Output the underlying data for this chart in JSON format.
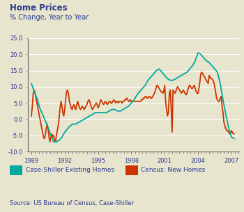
{
  "title": "Home Prices",
  "subtitle": "% Change, Year to Year",
  "source": "Source: US Bureau of Census, Case-Shiller",
  "background_color": "#e8e5ce",
  "plot_bg_color": "#e8e5ce",
  "title_color": "#2b3990",
  "text_color": "#2b3990",
  "grid_color": "#ffffff",
  "ylim": [
    -10.0,
    25.0
  ],
  "yticks": [
    -10.0,
    -5.0,
    0.0,
    5.0,
    10.0,
    15.0,
    20.0,
    25.0
  ],
  "xtick_years": [
    1989,
    1992,
    1995,
    1998,
    2001,
    2004,
    2007
  ],
  "xlim": [
    1988.7,
    2007.7
  ],
  "cs_color": "#00a89d",
  "census_color": "#cc3300",
  "cs_label": "Case-Shiller Existing Homes",
  "census_label": "Census: New Homes",
  "cs_x": [
    1989.0,
    1989.25,
    1989.5,
    1989.75,
    1990.0,
    1990.25,
    1990.5,
    1990.75,
    1991.0,
    1991.25,
    1991.5,
    1991.75,
    1992.0,
    1992.25,
    1992.5,
    1992.75,
    1993.0,
    1993.25,
    1993.5,
    1993.75,
    1994.0,
    1994.25,
    1994.5,
    1994.75,
    1995.0,
    1995.25,
    1995.5,
    1995.75,
    1996.0,
    1996.25,
    1996.5,
    1996.75,
    1997.0,
    1997.25,
    1997.5,
    1997.75,
    1998.0,
    1998.25,
    1998.5,
    1998.75,
    1999.0,
    1999.25,
    1999.5,
    1999.75,
    2000.0,
    2000.25,
    2000.5,
    2000.75,
    2001.0,
    2001.25,
    2001.5,
    2001.75,
    2002.0,
    2002.25,
    2002.5,
    2002.75,
    2003.0,
    2003.25,
    2003.5,
    2003.75,
    2004.0,
    2004.25,
    2004.5,
    2004.75,
    2005.0,
    2005.25,
    2005.5,
    2005.75,
    2006.0,
    2006.25,
    2006.5,
    2006.75,
    2007.0,
    2007.25
  ],
  "cs_y": [
    11.0,
    8.5,
    6.5,
    3.5,
    1.5,
    -0.5,
    -2.5,
    -5.0,
    -7.0,
    -7.0,
    -6.5,
    -5.5,
    -4.0,
    -3.0,
    -2.0,
    -1.5,
    -1.5,
    -1.0,
    -0.5,
    0.0,
    0.5,
    1.0,
    1.5,
    2.0,
    2.0,
    2.0,
    2.0,
    2.0,
    2.5,
    3.0,
    3.0,
    2.5,
    2.5,
    3.0,
    3.5,
    4.0,
    5.0,
    6.0,
    7.5,
    8.5,
    9.5,
    10.5,
    12.0,
    13.0,
    14.0,
    15.0,
    15.5,
    14.5,
    13.5,
    12.5,
    12.0,
    12.0,
    12.5,
    13.0,
    13.5,
    14.0,
    14.5,
    15.5,
    16.5,
    18.0,
    20.5,
    20.0,
    19.0,
    18.0,
    17.5,
    16.5,
    15.5,
    14.5,
    11.0,
    6.0,
    1.5,
    -2.5,
    -5.5,
    -6.0
  ],
  "census_x": [
    1989.0,
    1989.083,
    1989.167,
    1989.25,
    1989.333,
    1989.417,
    1989.5,
    1989.583,
    1989.667,
    1989.75,
    1989.833,
    1989.917,
    1990.0,
    1990.083,
    1990.167,
    1990.25,
    1990.333,
    1990.417,
    1990.5,
    1990.583,
    1990.667,
    1990.75,
    1990.833,
    1990.917,
    1991.0,
    1991.083,
    1991.167,
    1991.25,
    1991.333,
    1991.417,
    1991.5,
    1991.583,
    1991.667,
    1991.75,
    1991.833,
    1991.917,
    1992.0,
    1992.083,
    1992.167,
    1992.25,
    1992.333,
    1992.417,
    1992.5,
    1992.583,
    1992.667,
    1992.75,
    1992.833,
    1992.917,
    1993.0,
    1993.083,
    1993.167,
    1993.25,
    1993.333,
    1993.417,
    1993.5,
    1993.583,
    1993.667,
    1993.75,
    1993.833,
    1993.917,
    1994.0,
    1994.083,
    1994.167,
    1994.25,
    1994.333,
    1994.417,
    1994.5,
    1994.583,
    1994.667,
    1994.75,
    1994.833,
    1994.917,
    1995.0,
    1995.083,
    1995.167,
    1995.25,
    1995.333,
    1995.417,
    1995.5,
    1995.583,
    1995.667,
    1995.75,
    1995.833,
    1995.917,
    1996.0,
    1996.083,
    1996.167,
    1996.25,
    1996.333,
    1996.417,
    1996.5,
    1996.583,
    1996.667,
    1996.75,
    1996.833,
    1996.917,
    1997.0,
    1997.083,
    1997.167,
    1997.25,
    1997.333,
    1997.417,
    1997.5,
    1997.583,
    1997.667,
    1997.75,
    1997.833,
    1997.917,
    1998.0,
    1998.083,
    1998.167,
    1998.25,
    1998.333,
    1998.417,
    1998.5,
    1998.583,
    1998.667,
    1998.75,
    1998.833,
    1998.917,
    1999.0,
    1999.083,
    1999.167,
    1999.25,
    1999.333,
    1999.417,
    1999.5,
    1999.583,
    1999.667,
    1999.75,
    1999.833,
    1999.917,
    2000.0,
    2000.083,
    2000.167,
    2000.25,
    2000.333,
    2000.417,
    2000.5,
    2000.583,
    2000.667,
    2000.75,
    2000.833,
    2000.917,
    2001.0,
    2001.083,
    2001.167,
    2001.25,
    2001.333,
    2001.417,
    2001.5,
    2001.583,
    2001.667,
    2001.75,
    2001.833,
    2001.917,
    2002.0,
    2002.083,
    2002.167,
    2002.25,
    2002.333,
    2002.417,
    2002.5,
    2002.583,
    2002.667,
    2002.75,
    2002.833,
    2002.917,
    2003.0,
    2003.083,
    2003.167,
    2003.25,
    2003.333,
    2003.417,
    2003.5,
    2003.583,
    2003.667,
    2003.75,
    2003.833,
    2003.917,
    2004.0,
    2004.083,
    2004.167,
    2004.25,
    2004.333,
    2004.417,
    2004.5,
    2004.583,
    2004.667,
    2004.75,
    2004.833,
    2004.917,
    2005.0,
    2005.083,
    2005.167,
    2005.25,
    2005.333,
    2005.417,
    2005.5,
    2005.583,
    2005.667,
    2005.75,
    2005.833,
    2005.917,
    2006.0,
    2006.083,
    2006.167,
    2006.25,
    2006.333,
    2006.417,
    2006.5,
    2006.583,
    2006.667,
    2006.75,
    2006.833,
    2006.917,
    2007.0,
    2007.083,
    2007.167,
    2007.25
  ],
  "census_y": [
    1.0,
    4.0,
    8.0,
    9.0,
    8.0,
    6.5,
    5.0,
    3.5,
    2.0,
    0.5,
    -1.0,
    -2.5,
    -4.0,
    -5.5,
    -6.0,
    -5.0,
    -3.0,
    -1.5,
    -3.0,
    -5.5,
    -7.0,
    -5.5,
    -4.5,
    -5.5,
    -5.0,
    -6.5,
    -7.0,
    -5.0,
    -3.5,
    -2.0,
    0.5,
    3.5,
    5.5,
    4.0,
    2.0,
    1.0,
    3.0,
    6.0,
    8.5,
    9.0,
    8.0,
    5.5,
    4.5,
    3.5,
    3.0,
    4.0,
    4.5,
    3.5,
    3.0,
    4.5,
    5.5,
    4.5,
    3.5,
    3.0,
    3.5,
    4.0,
    3.5,
    3.0,
    3.5,
    4.0,
    4.5,
    5.5,
    6.0,
    5.5,
    4.5,
    3.5,
    3.0,
    3.5,
    4.0,
    4.5,
    5.0,
    4.5,
    3.5,
    4.0,
    5.0,
    6.0,
    5.5,
    5.0,
    4.5,
    5.0,
    5.5,
    5.0,
    4.5,
    5.0,
    5.5,
    5.5,
    5.0,
    5.0,
    5.5,
    6.0,
    5.5,
    5.0,
    5.5,
    5.5,
    5.0,
    5.5,
    5.5,
    5.5,
    5.0,
    5.5,
    5.5,
    6.0,
    6.0,
    6.5,
    6.0,
    5.5,
    5.5,
    6.0,
    5.5,
    5.5,
    5.5,
    5.5,
    5.5,
    5.5,
    5.5,
    5.5,
    5.5,
    5.5,
    5.5,
    6.0,
    6.0,
    6.5,
    6.5,
    7.0,
    7.0,
    6.5,
    6.5,
    7.0,
    7.0,
    6.5,
    6.5,
    7.0,
    7.5,
    8.0,
    9.0,
    10.0,
    10.5,
    10.0,
    9.5,
    9.0,
    8.5,
    8.5,
    8.0,
    8.5,
    10.5,
    5.5,
    3.0,
    1.0,
    2.0,
    8.0,
    9.0,
    3.5,
    -4.0,
    9.0,
    8.5,
    8.0,
    8.5,
    9.5,
    10.0,
    9.5,
    9.0,
    8.5,
    8.0,
    8.5,
    9.0,
    8.5,
    8.0,
    7.5,
    8.0,
    9.0,
    10.0,
    10.5,
    10.0,
    9.5,
    9.5,
    10.0,
    10.5,
    9.5,
    8.5,
    8.0,
    8.0,
    9.5,
    11.5,
    14.0,
    14.5,
    14.0,
    13.5,
    13.0,
    12.5,
    12.0,
    11.5,
    11.0,
    13.5,
    13.0,
    12.5,
    12.5,
    12.0,
    11.5,
    10.0,
    8.5,
    6.5,
    6.0,
    5.5,
    5.5,
    6.5,
    7.0,
    4.0,
    2.0,
    -1.0,
    -2.0,
    -3.0,
    -3.5,
    -3.5,
    -4.0,
    -4.5,
    -4.5,
    -3.5,
    -4.0,
    -4.5,
    -4.5
  ]
}
